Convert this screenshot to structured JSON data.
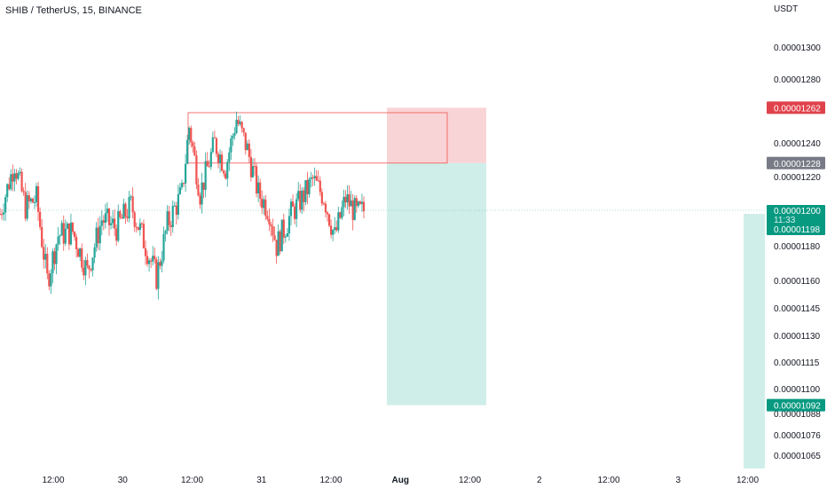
{
  "title": "SHIB / TetherUS, 15, BINANCE",
  "currency": "USDT",
  "colors": {
    "up": "#26a69a",
    "down": "#ef5350",
    "stop_zone": "#f7c5c8",
    "target_zone": "#c8ebe5",
    "stop_tag": "#e0424b",
    "entry_tag": "#787b86",
    "price_tag": "#089981",
    "axis_text": "#131722",
    "box_outline": "#ef5350"
  },
  "chart_data": {
    "type": "candlestick",
    "ylabel": "USDT",
    "y_ticks": [
      1.3e-05,
      1.28e-05,
      1.24e-05,
      1.22e-05,
      1.18e-05,
      1.16e-05,
      1.145e-05,
      1.13e-05,
      1.115e-05,
      1.1e-05,
      1.088e-05,
      1.076e-05,
      1.065e-05
    ],
    "y_tick_labels": [
      "0.00001300",
      "0.00001280",
      "0.00001240",
      "0.00001220",
      "0.00001180",
      "0.00001160",
      "0.00001145",
      "0.00001130",
      "0.00001115",
      "0.00001100",
      "0.00001088",
      "0.00001076",
      "0.00001065"
    ],
    "x_ticks": [
      {
        "label": "12:00",
        "day_offset": 0.5
      },
      {
        "label": "30",
        "day_offset": 1.0
      },
      {
        "label": "12:00",
        "day_offset": 1.5
      },
      {
        "label": "31",
        "day_offset": 2.0
      },
      {
        "label": "12:00",
        "day_offset": 2.5
      },
      {
        "label": "Aug",
        "day_offset": 3.0
      },
      {
        "label": "12:00",
        "day_offset": 3.5
      },
      {
        "label": "2",
        "day_offset": 4.0
      },
      {
        "label": "12:00",
        "day_offset": 4.5
      },
      {
        "label": "3",
        "day_offset": 5.0
      },
      {
        "label": "12:00",
        "day_offset": 5.5
      }
    ],
    "candle_interval_minutes": 15,
    "anchors": [
      [
        0,
        1.198e-05
      ],
      [
        8,
        1.228e-05
      ],
      [
        14,
        1.202e-05
      ],
      [
        20,
        1.207e-05
      ],
      [
        26,
        1.16e-05
      ],
      [
        32,
        1.186e-05
      ],
      [
        40,
        1.188e-05
      ],
      [
        48,
        1.165e-05
      ],
      [
        56,
        1.195e-05
      ],
      [
        64,
        1.19e-05
      ],
      [
        72,
        1.203e-05
      ],
      [
        78,
        1.186e-05
      ],
      [
        86,
        1.162e-05
      ],
      [
        92,
        1.192e-05
      ],
      [
        100,
        1.21e-05
      ],
      [
        104,
        1.25e-05
      ],
      [
        110,
        1.21e-05
      ],
      [
        118,
        1.24e-05
      ],
      [
        124,
        1.225e-05
      ],
      [
        130,
        1.255e-05
      ],
      [
        136,
        1.236e-05
      ],
      [
        142,
        1.21e-05
      ],
      [
        148,
        1.2e-05
      ],
      [
        152,
        1.18e-05
      ],
      [
        160,
        1.198e-05
      ],
      [
        166,
        1.207e-05
      ],
      [
        172,
        1.218e-05
      ],
      [
        178,
        1.208e-05
      ],
      [
        184,
        1.185e-05
      ],
      [
        190,
        1.207e-05
      ],
      [
        196,
        1.198e-05
      ],
      [
        200,
        1.2e-05
      ]
    ],
    "ranges": [
      {
        "name": "consolidation-box",
        "start": 104,
        "end": 247,
        "top": 1.26e-05,
        "bottom": 1.228e-05
      }
    ],
    "position": {
      "side": "long",
      "start": 211,
      "end": 267,
      "stop": 1.262e-05,
      "entry": 1.228e-05,
      "target": 1.092e-05
    },
    "last_price": 1.2e-05,
    "countdown": "11:33",
    "price_tags": {
      "stop": "0.00001262",
      "entry": "0.00001228",
      "last": "0.00001200",
      "last_sub": "0.00001198",
      "target": "0.00001092"
    }
  }
}
